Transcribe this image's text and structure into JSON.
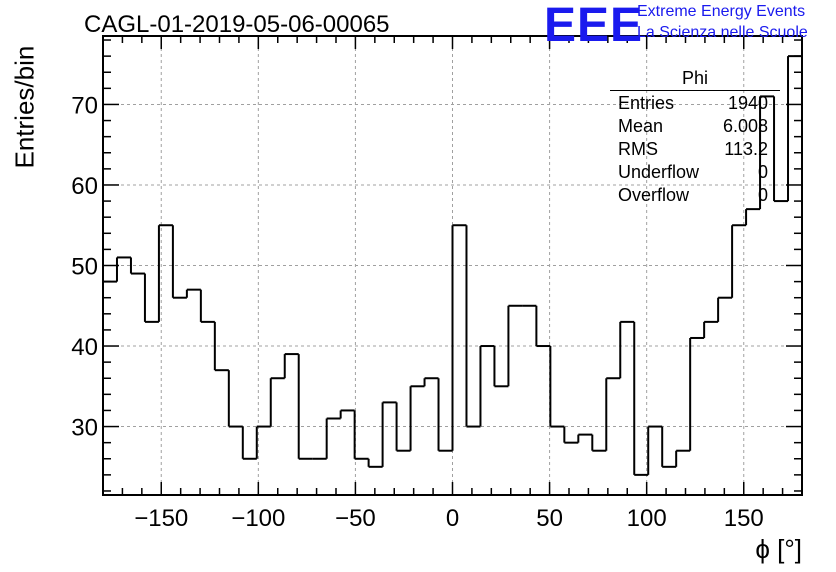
{
  "run_title": "CAGL-01-2019-05-06-00065",
  "logo": {
    "mark": "EEE",
    "line1": "Extreme Energy Events",
    "line2": "La Scienza nelle Scuole",
    "color": "#1a1aee"
  },
  "stats_box": {
    "name": "Phi",
    "rows": [
      {
        "label": "Entries",
        "value": "1940"
      },
      {
        "label": "Mean",
        "value": "6.008"
      },
      {
        "label": "RMS",
        "value": "113.2"
      },
      {
        "label": "Underflow",
        "value": "0"
      },
      {
        "label": "Overflow",
        "value": "0"
      }
    ]
  },
  "chart_data": {
    "type": "bar",
    "style": "step-histogram",
    "title": "CAGL-01-2019-05-06-00065",
    "xlabel": "ϕ [°]",
    "ylabel": "Entries/bin",
    "xlim": [
      -180,
      180
    ],
    "ylim": [
      21.5,
      78.5
    ],
    "bin_width": 7.2,
    "bin_edges_start": -180,
    "xticks": [
      -150,
      -100,
      -50,
      0,
      50,
      100,
      150
    ],
    "xtick_labels": [
      "−150",
      "−100",
      "−50",
      "0",
      "50",
      "100",
      "150"
    ],
    "yticks": [
      30,
      40,
      50,
      60,
      70
    ],
    "grid": true,
    "values": [
      48,
      51,
      49,
      43,
      55,
      46,
      47,
      43,
      37,
      30,
      26,
      30,
      36,
      39,
      26,
      26,
      31,
      32,
      26,
      25,
      33,
      27,
      35,
      36,
      27,
      55,
      30,
      40,
      35,
      45,
      45,
      40,
      30,
      28,
      29,
      27,
      36,
      43,
      24,
      30,
      25,
      27,
      41,
      43,
      46,
      55,
      57,
      71,
      58,
      76
    ]
  }
}
